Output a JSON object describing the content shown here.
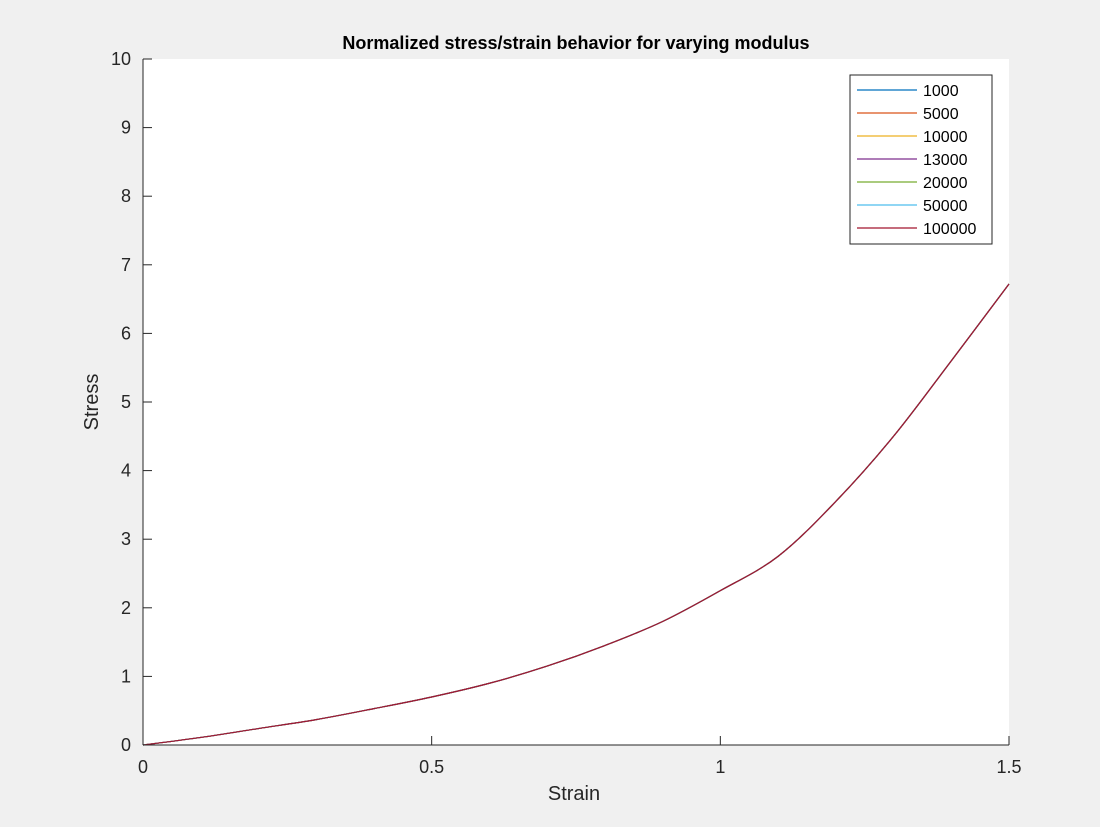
{
  "chart_data": {
    "type": "line",
    "title": "Normalized stress/strain behavior for varying modulus",
    "xlabel": "Strain",
    "ylabel": "Stress",
    "xlim": [
      0,
      1.5
    ],
    "ylim": [
      0,
      10
    ],
    "xticks": [
      "0",
      "0.5",
      "1",
      "1.5"
    ],
    "yticks": [
      "0",
      "1",
      "2",
      "3",
      "4",
      "5",
      "6",
      "7",
      "8",
      "9",
      "10"
    ],
    "grid": false,
    "legend_position": "top-right",
    "x": [
      0,
      0.1,
      0.2,
      0.3,
      0.4,
      0.5,
      0.6,
      0.7,
      0.8,
      0.9,
      1.0,
      1.1,
      1.2,
      1.3,
      1.4,
      1.5
    ],
    "series": [
      {
        "name": "1000",
        "color": "#0072bd",
        "values": [
          0,
          0.11,
          0.24,
          0.37,
          0.53,
          0.7,
          0.9,
          1.15,
          1.45,
          1.8,
          2.25,
          2.75,
          3.55,
          4.5,
          5.6,
          6.72
        ]
      },
      {
        "name": "5000",
        "color": "#d95319",
        "values": [
          0,
          0.11,
          0.24,
          0.37,
          0.53,
          0.7,
          0.9,
          1.15,
          1.45,
          1.8,
          2.25,
          2.75,
          3.55,
          4.5,
          5.6,
          6.72
        ]
      },
      {
        "name": "10000",
        "color": "#edb120",
        "values": [
          0,
          0.11,
          0.24,
          0.37,
          0.53,
          0.7,
          0.9,
          1.15,
          1.45,
          1.8,
          2.25,
          2.75,
          3.55,
          4.5,
          5.6,
          6.72
        ]
      },
      {
        "name": "13000",
        "color": "#7e2f8e",
        "values": [
          0,
          0.11,
          0.24,
          0.37,
          0.53,
          0.7,
          0.9,
          1.15,
          1.45,
          1.8,
          2.25,
          2.75,
          3.55,
          4.5,
          5.6,
          6.72
        ]
      },
      {
        "name": "20000",
        "color": "#77ac30",
        "values": [
          0,
          0.11,
          0.24,
          0.37,
          0.53,
          0.7,
          0.9,
          1.15,
          1.45,
          1.8,
          2.25,
          2.75,
          3.55,
          4.5,
          5.6,
          6.72
        ]
      },
      {
        "name": "50000",
        "color": "#4dbeee",
        "values": [
          0,
          0.11,
          0.24,
          0.37,
          0.53,
          0.7,
          0.9,
          1.15,
          1.45,
          1.8,
          2.25,
          2.75,
          3.55,
          4.5,
          5.6,
          6.72
        ]
      },
      {
        "name": "100000",
        "color": "#a2142f",
        "values": [
          0,
          0.11,
          0.24,
          0.37,
          0.53,
          0.7,
          0.9,
          1.15,
          1.45,
          1.8,
          2.25,
          2.75,
          3.55,
          4.5,
          5.6,
          6.72
        ]
      }
    ]
  }
}
